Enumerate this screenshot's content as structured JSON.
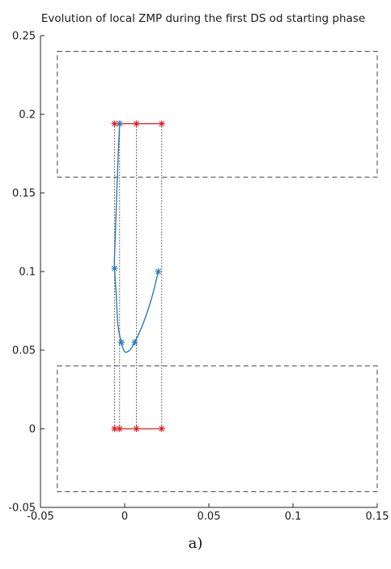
{
  "chart_data": {
    "type": "line",
    "title": "Evolution of local ZMP during the first DS od starting phase",
    "xlabel": "",
    "ylabel": "",
    "xlim": [
      -0.05,
      0.15
    ],
    "ylim": [
      -0.05,
      0.25
    ],
    "x_ticks": [
      -0.05,
      0,
      0.05,
      0.1,
      0.15
    ],
    "x_tick_labels": [
      "-0.05",
      "0",
      "0.05",
      "0.1",
      "0.15"
    ],
    "y_ticks": [
      -0.05,
      0,
      0.05,
      0.1,
      0.15,
      0.2,
      0.25
    ],
    "y_tick_labels": [
      "-0.05",
      "0",
      "0.05",
      "0.1",
      "0.15",
      "0.2",
      "0.25"
    ],
    "grid": false,
    "legend": "none",
    "foot_regions": [
      {
        "x": [
          -0.04,
          0.15
        ],
        "y": [
          0.16,
          0.24
        ]
      },
      {
        "x": [
          -0.04,
          0.15
        ],
        "y": [
          -0.04,
          0.04
        ]
      }
    ],
    "zmp_curve": {
      "x": [
        -0.003,
        -0.004,
        -0.005,
        -0.006,
        -0.006,
        -0.005,
        -0.004,
        -0.002,
        0.0,
        0.003,
        0.006,
        0.011,
        0.016,
        0.02
      ],
      "y": [
        0.194,
        0.17,
        0.14,
        0.11,
        0.102,
        0.085,
        0.066,
        0.055,
        0.049,
        0.05,
        0.055,
        0.067,
        0.083,
        0.1
      ],
      "color": "#2b7bba"
    },
    "zmp_markers": {
      "x": [
        -0.003,
        -0.006,
        -0.002,
        0.006,
        0.02
      ],
      "y": [
        0.194,
        0.102,
        0.055,
        0.055,
        0.1
      ],
      "color": "#2b7bba"
    },
    "support_points": {
      "x": [
        -0.006,
        -0.003,
        0.007,
        0.022
      ],
      "y_top": 0.194,
      "y_bottom": 0,
      "color": "#e31a1c"
    },
    "caption": "a)"
  }
}
